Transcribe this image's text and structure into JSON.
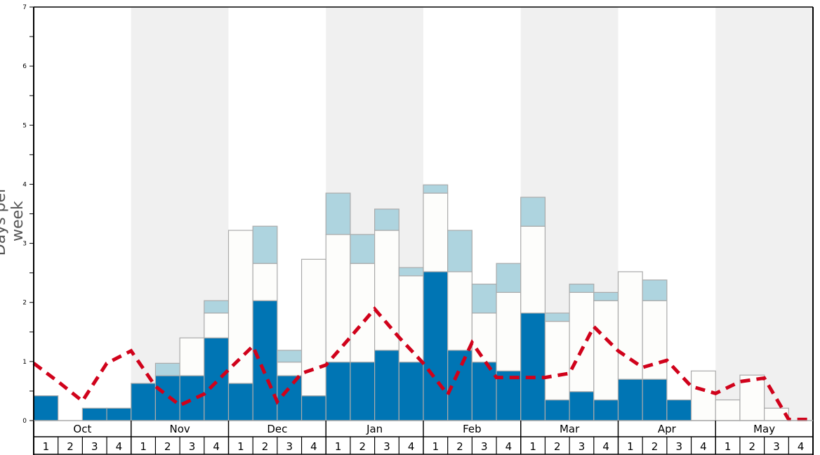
{
  "chart_data": {
    "type": "bar",
    "title": "",
    "ylabel": "Days per week",
    "xlabel": "",
    "ylim": [
      0,
      7
    ],
    "yticks": [
      0,
      1,
      2,
      3,
      4,
      5,
      6,
      7
    ],
    "months": [
      "Oct",
      "Nov",
      "Dec",
      "Jan",
      "Feb",
      "Mar",
      "Apr",
      "May"
    ],
    "week_labels": [
      "1",
      "2",
      "3",
      "4"
    ],
    "shaded_months": [
      "Nov",
      "Jan",
      "Mar",
      "May"
    ],
    "stacked": true,
    "series": [
      {
        "name": "dark",
        "color": "#0075b4",
        "values": [
          0.42,
          0,
          0.21,
          0.21,
          0.63,
          0.76,
          0.76,
          1.4,
          0.63,
          2.03,
          0.76,
          0.42,
          0.99,
          0.99,
          1.19,
          0.99,
          2.52,
          1.19,
          0.99,
          0.84,
          1.82,
          0.35,
          0.49,
          0.35,
          0.7,
          0.7,
          0.35,
          0,
          0,
          0,
          0,
          0
        ]
      },
      {
        "name": "white",
        "color": "#fdfdfb",
        "values": [
          0,
          0,
          0,
          0,
          0,
          0,
          0.64,
          0.42,
          2.59,
          0.63,
          0.23,
          2.31,
          2.16,
          1.67,
          2.03,
          1.46,
          1.33,
          1.33,
          0.83,
          1.33,
          1.47,
          1.33,
          1.68,
          1.68,
          1.82,
          1.33,
          0,
          0.84,
          0.35,
          0.77,
          0.21,
          0
        ]
      },
      {
        "name": "light",
        "color": "#aed4df",
        "values": [
          0,
          0,
          0,
          0,
          0,
          0.21,
          0,
          0.21,
          0,
          0.63,
          0.2,
          0,
          0.7,
          0.49,
          0.36,
          0.14,
          0.14,
          0.7,
          0.49,
          0.49,
          0.49,
          0.14,
          0.14,
          0.14,
          0,
          0.35,
          0,
          0,
          0,
          0,
          0,
          0
        ]
      }
    ],
    "line": {
      "name": "average",
      "color": "#d0021b",
      "style": "dashed",
      "values": [
        0.97,
        0.66,
        0.33,
        0.97,
        1.18,
        0.58,
        0.26,
        0.45,
        0.86,
        1.26,
        0.32,
        0.8,
        0.94,
        1.41,
        1.89,
        1.41,
        0.97,
        0.44,
        1.32,
        0.73,
        0.73,
        0.73,
        0.8,
        1.59,
        1.18,
        0.9,
        1.02,
        0.58,
        0.46,
        0.66,
        0.72,
        0.02,
        0.02
      ]
    }
  }
}
